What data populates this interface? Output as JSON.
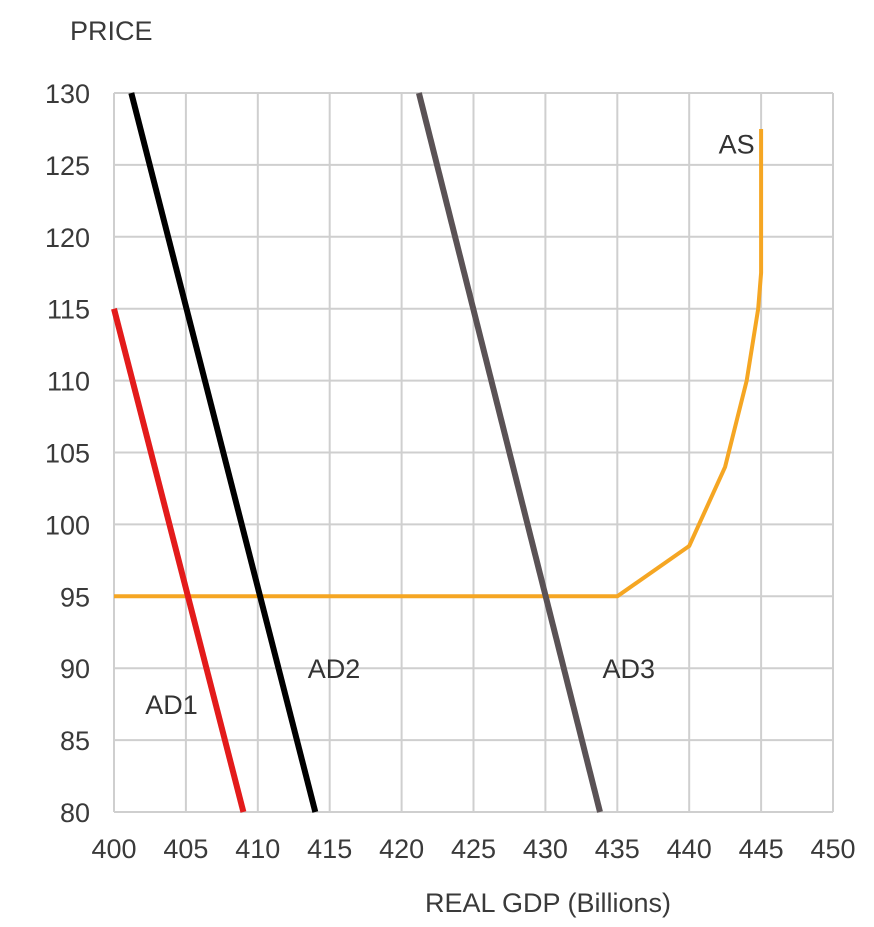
{
  "chart_data": {
    "type": "line",
    "title": "",
    "xlabel": "REAL GDP (Billions)",
    "ylabel": "PRICE",
    "xlim": [
      400,
      450
    ],
    "ylim": [
      80,
      130
    ],
    "grid": true,
    "x_ticks": [
      400,
      405,
      410,
      415,
      420,
      425,
      430,
      435,
      440,
      445,
      450
    ],
    "y_ticks": [
      80,
      85,
      90,
      95,
      100,
      105,
      110,
      115,
      120,
      125,
      130
    ],
    "series": [
      {
        "name": "AD1",
        "color": "#e31b1b",
        "points": [
          [
            400,
            115
          ],
          [
            409,
            80
          ]
        ]
      },
      {
        "name": "AD2",
        "color": "#000000",
        "points": [
          [
            401.2,
            130
          ],
          [
            414,
            80
          ]
        ]
      },
      {
        "name": "AD3",
        "color": "#5a5255",
        "points": [
          [
            421.2,
            130
          ],
          [
            433.8,
            80
          ]
        ]
      },
      {
        "name": "AS",
        "color": "#f5a623",
        "points": [
          [
            400,
            95
          ],
          [
            435,
            95
          ],
          [
            440,
            98.5
          ],
          [
            442.5,
            104
          ],
          [
            444,
            110
          ],
          [
            444.8,
            115
          ],
          [
            445,
            117.5
          ],
          [
            445,
            127.5
          ]
        ]
      }
    ],
    "annotations": [
      {
        "text": "AD1",
        "x": 404,
        "y": 87.5
      },
      {
        "text": "AD2",
        "x": 415.3,
        "y": 90
      },
      {
        "text": "AD3",
        "x": 435.8,
        "y": 90
      },
      {
        "text": "AS",
        "x": 443.3,
        "y": 126.5
      }
    ]
  }
}
